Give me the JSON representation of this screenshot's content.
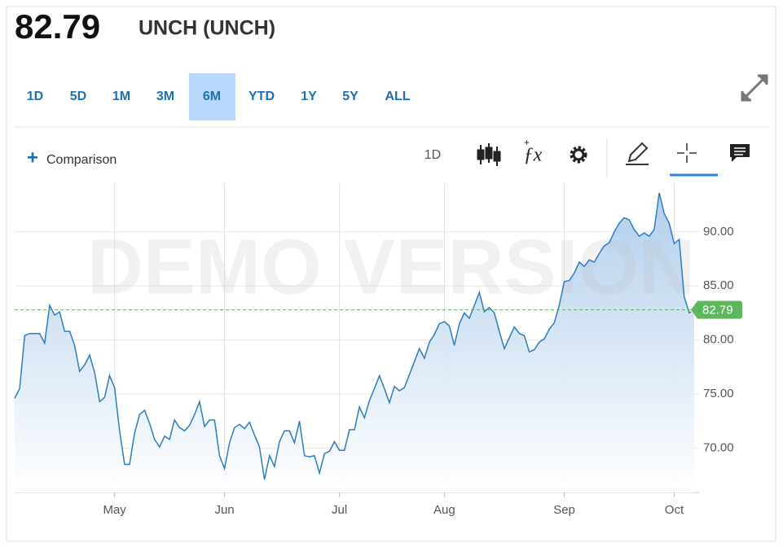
{
  "header": {
    "title": "UNCH (UNCH)"
  },
  "ranges": {
    "items": [
      "1D",
      "5D",
      "1M",
      "3M",
      "6M",
      "YTD",
      "1Y",
      "5Y",
      "ALL"
    ],
    "active": "6M"
  },
  "toolbar": {
    "comparison": "Comparison",
    "interval": "1D"
  },
  "chart_data": {
    "type": "area",
    "watermark": "DEMO VERSION",
    "color": "#2e7cc0",
    "last_value_line": true,
    "last_value_color": "#5cb85c",
    "grid": true,
    "ylim": [
      65.9,
      94.5
    ],
    "yticks": [
      {
        "value": 70,
        "label": "70.00"
      },
      {
        "value": 75,
        "label": "75.00"
      },
      {
        "value": 80,
        "label": "80.00"
      },
      {
        "value": 85,
        "label": "85.00"
      },
      {
        "value": 90,
        "label": "90.00"
      }
    ],
    "categories": [
      null,
      null,
      null,
      null,
      null,
      null,
      null,
      null,
      null,
      null,
      null,
      null,
      null,
      null,
      null,
      null,
      null,
      null,
      null,
      null,
      "May",
      null,
      null,
      null,
      null,
      null,
      null,
      null,
      null,
      null,
      null,
      null,
      null,
      null,
      null,
      null,
      null,
      null,
      null,
      null,
      null,
      null,
      "Jun",
      null,
      null,
      null,
      null,
      null,
      null,
      null,
      null,
      null,
      null,
      null,
      null,
      null,
      null,
      null,
      null,
      null,
      null,
      null,
      null,
      null,
      null,
      "Jul",
      null,
      null,
      null,
      null,
      null,
      null,
      null,
      null,
      null,
      null,
      null,
      null,
      null,
      null,
      null,
      null,
      null,
      null,
      null,
      null,
      "Aug",
      null,
      null,
      null,
      null,
      null,
      null,
      null,
      null,
      null,
      null,
      null,
      null,
      null,
      null,
      null,
      null,
      null,
      null,
      null,
      null,
      null,
      null,
      null,
      "Sep",
      null,
      null,
      null,
      null,
      null,
      null,
      null,
      null,
      null,
      null,
      null,
      null,
      null,
      null,
      null,
      null,
      null,
      null,
      null,
      null,
      null,
      "Oct",
      null,
      null,
      null,
      null
    ],
    "values": [
      74.6,
      75.5,
      80.4,
      80.6,
      80.6,
      80.6,
      79.7,
      83.2,
      82.3,
      82.6,
      80.8,
      80.8,
      79.5,
      77.1,
      77.7,
      78.6,
      77.0,
      74.3,
      74.7,
      76.7,
      75.6,
      71.6,
      68.5,
      68.5,
      71.4,
      73.1,
      73.5,
      72.3,
      70.8,
      70.1,
      71.1,
      70.8,
      72.6,
      71.9,
      71.6,
      72.1,
      73.1,
      74.3,
      72.0,
      72.6,
      72.6,
      69.3,
      68.1,
      70.5,
      71.9,
      72.2,
      71.8,
      72.4,
      71.2,
      70.1,
      67.1,
      69.3,
      68.3,
      70.6,
      71.6,
      71.6,
      70.5,
      72.5,
      69.3,
      69.2,
      69.3,
      67.7,
      69.5,
      69.7,
      70.6,
      69.8,
      69.8,
      71.7,
      71.7,
      73.8,
      72.8,
      74.4,
      75.5,
      76.7,
      75.5,
      74.2,
      75.7,
      75.3,
      75.6,
      76.8,
      78.0,
      79.2,
      78.3,
      79.8,
      80.5,
      81.5,
      81.7,
      81.3,
      79.5,
      81.5,
      82.5,
      82.0,
      83.2,
      84.4,
      82.6,
      83.0,
      82.5,
      80.8,
      79.2,
      80.2,
      81.2,
      80.6,
      80.4,
      78.9,
      79.1,
      79.8,
      80.1,
      81.0,
      81.6,
      83.2,
      85.4,
      85.5,
      86.2,
      87.2,
      86.8,
      87.4,
      87.2,
      88.0,
      88.7,
      89.0,
      90.0,
      90.8,
      91.3,
      91.1,
      90.2,
      89.6,
      89.9,
      89.6,
      90.2,
      93.6,
      91.7,
      90.8,
      88.9,
      89.3,
      84.0,
      82.5,
      82.79
    ]
  }
}
